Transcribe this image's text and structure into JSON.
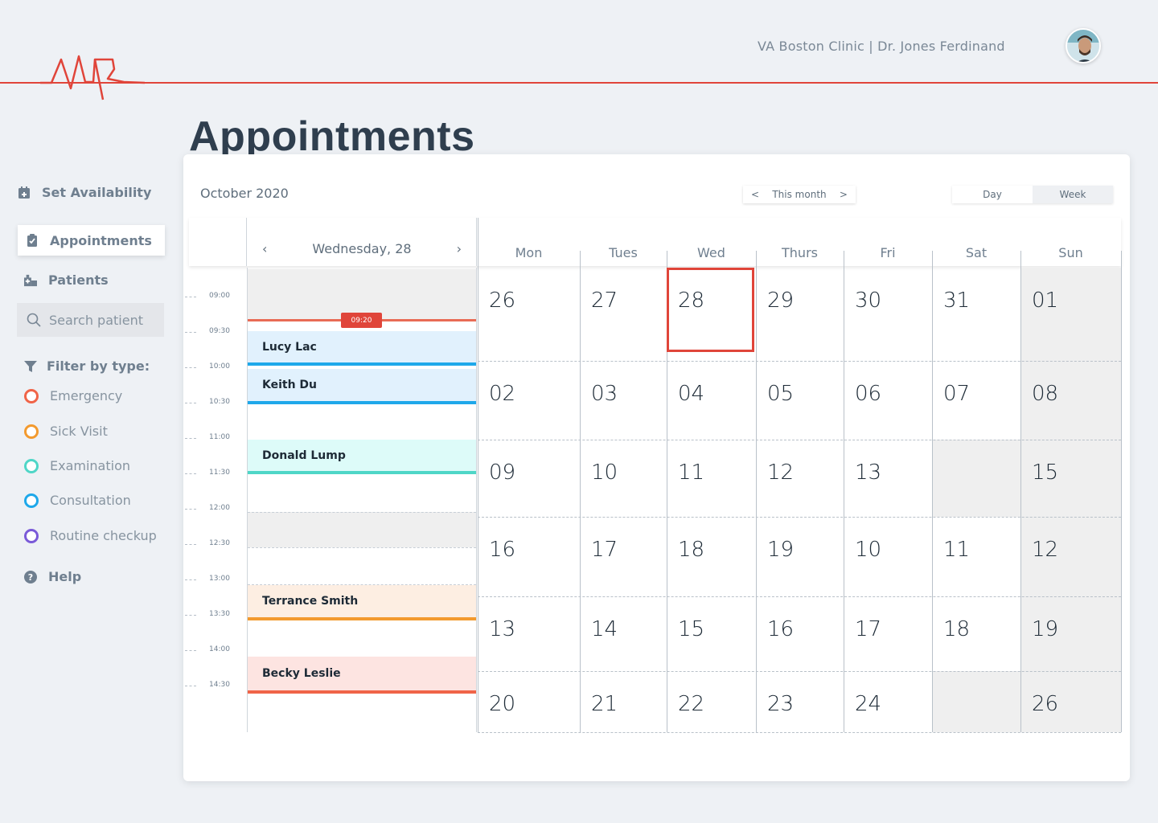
{
  "header": {
    "clinic_line": "VA Boston Clinic | Dr. Jones Ferdinand"
  },
  "page_title": "Appointments",
  "sidebar": {
    "items": [
      {
        "label": "Set Availability",
        "icon": "calendar-plus-icon"
      },
      {
        "label": "Appointments",
        "icon": "clipboard-check-icon",
        "active": true
      },
      {
        "label": "Patients",
        "icon": "hospital-icon"
      }
    ],
    "search_placeholder": "Search patient",
    "filter_title": "Filter by type:",
    "filters": [
      {
        "label": "Emergency",
        "color": "#f06448"
      },
      {
        "label": "Sick Visit",
        "color": "#f39a2e"
      },
      {
        "label": "Examination",
        "color": "#4fd6c7"
      },
      {
        "label": "Consultation",
        "color": "#1ea8ea"
      },
      {
        "label": "Routine checkup",
        "color": "#7a5ad8"
      }
    ],
    "help": "Help"
  },
  "calendar": {
    "month_label": "October 2020",
    "month_nav": {
      "prev": "<",
      "label": "This month",
      "next": ">"
    },
    "view_toggle": {
      "day": "Day",
      "week": "Week"
    },
    "day_view": {
      "prev": "‹",
      "title": "Wednesday, 28",
      "next": "›",
      "times": [
        "09:00",
        "09:30",
        "10:00",
        "10:30",
        "11:00",
        "11:30",
        "12:00",
        "12:30",
        "13:00",
        "13:30",
        "14:00",
        "14:30"
      ],
      "now_badge": "09:20",
      "appointments": [
        {
          "name": "Lucy Lac",
          "type": "Consultation",
          "color": "#1ea8ea",
          "bg": "#e1f1fd"
        },
        {
          "name": "Keith Du",
          "type": "Consultation",
          "color": "#1ea8ea",
          "bg": "#e1f1fd"
        },
        {
          "name": "Donald Lump",
          "type": "Examination",
          "color": "#4fd6c7",
          "bg": "#ddfbf9"
        },
        {
          "name": "Terrance Smith",
          "type": "Sick Visit",
          "color": "#f39a2e",
          "bg": "#fdeee2"
        },
        {
          "name": "Becky Leslie",
          "type": "Emergency",
          "color": "#f06448",
          "bg": "#fde4e1"
        }
      ]
    },
    "weekdays": [
      "Mon",
      "Tues",
      "Wed",
      "Thurs",
      "Fri",
      "Sat",
      "Sun"
    ],
    "weeks": [
      [
        "26",
        "27",
        "28",
        "29",
        "30",
        "31",
        "01"
      ],
      [
        "02",
        "03",
        "04",
        "05",
        "06",
        "07",
        "08"
      ],
      [
        "09",
        "10",
        "11",
        "12",
        "13",
        "",
        "15"
      ],
      [
        "16",
        "17",
        "18",
        "19",
        "10",
        "11",
        "12"
      ],
      [
        "13",
        "14",
        "15",
        "16",
        "17",
        "18",
        "19"
      ],
      [
        "20",
        "21",
        "22",
        "23",
        "24",
        "",
        "26"
      ]
    ],
    "accent_color": "#e0453a"
  }
}
